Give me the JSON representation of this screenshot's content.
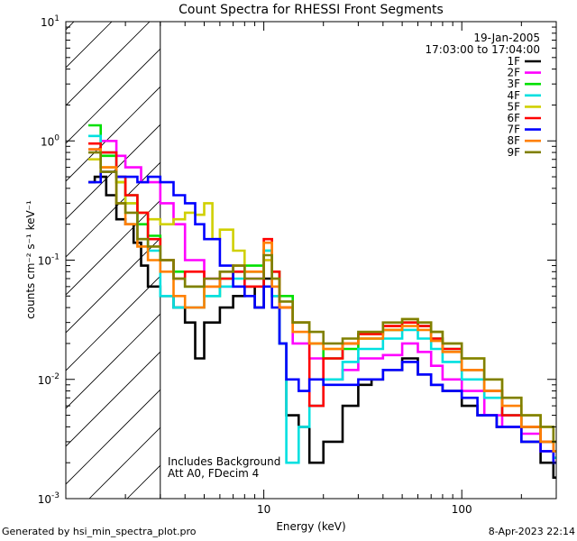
{
  "chart_data": {
    "type": "line",
    "title": "Count Spectra for RHESSI Front Segments",
    "xlabel": "Energy (keV)",
    "ylabel": "counts cm⁻² s⁻¹ keV⁻¹",
    "xscale": "log",
    "yscale": "log",
    "xlim": [
      1,
      300
    ],
    "ylim": [
      0.001,
      10
    ],
    "x_tick_labels": [
      "10",
      "100"
    ],
    "y_tick_labels": [
      {
        "base": "10",
        "exp": "1",
        "value": 10
      },
      {
        "base": "10",
        "exp": "0",
        "value": 1
      },
      {
        "base": "10",
        "exp": "-1",
        "value": 0.1
      },
      {
        "base": "10",
        "exp": "-2",
        "value": 0.01
      },
      {
        "base": "10",
        "exp": "-3",
        "value": 0.001
      }
    ],
    "date": "19-Jan-2005",
    "time_range": "17:03:00 to 17:04:00",
    "shaded_region": {
      "from": 1,
      "to": 3
    },
    "annotations": [
      "Includes Background",
      "Att A0, FDecim 4"
    ],
    "series": [
      {
        "name": "1F",
        "color": "#000000",
        "points": [
          [
            1.3,
            0.45
          ],
          [
            1.4,
            0.5
          ],
          [
            1.6,
            0.35
          ],
          [
            1.8,
            0.22
          ],
          [
            2,
            0.2
          ],
          [
            2.2,
            0.14
          ],
          [
            2.4,
            0.09
          ],
          [
            2.6,
            0.06
          ],
          [
            3,
            0.05
          ],
          [
            3.5,
            0.04
          ],
          [
            4,
            0.03
          ],
          [
            4.5,
            0.015
          ],
          [
            5,
            0.03
          ],
          [
            6,
            0.04
          ],
          [
            7,
            0.05
          ],
          [
            8,
            0.06
          ],
          [
            9,
            0.04
          ],
          [
            10,
            0.07
          ],
          [
            11,
            0.05
          ],
          [
            12,
            0.02
          ],
          [
            13,
            0.005
          ],
          [
            15,
            0.004
          ],
          [
            17,
            0.002
          ],
          [
            20,
            0.003
          ],
          [
            25,
            0.006
          ],
          [
            30,
            0.009
          ],
          [
            35,
            0.01
          ],
          [
            40,
            0.012
          ],
          [
            50,
            0.015
          ],
          [
            60,
            0.011
          ],
          [
            70,
            0.009
          ],
          [
            80,
            0.008
          ],
          [
            100,
            0.006
          ],
          [
            120,
            0.005
          ],
          [
            150,
            0.004
          ],
          [
            200,
            0.003
          ],
          [
            250,
            0.002
          ],
          [
            290,
            0.0015
          ]
        ]
      },
      {
        "name": "2F",
        "color": "#ff00ff",
        "points": [
          [
            1.3,
            0.85
          ],
          [
            1.5,
            1.0
          ],
          [
            1.8,
            0.75
          ],
          [
            2,
            0.6
          ],
          [
            2.4,
            0.45
          ],
          [
            3,
            0.3
          ],
          [
            3.5,
            0.2
          ],
          [
            4,
            0.1
          ],
          [
            5,
            0.07
          ],
          [
            6,
            0.06
          ],
          [
            7,
            0.06
          ],
          [
            8,
            0.07
          ],
          [
            10,
            0.1
          ],
          [
            11,
            0.06
          ],
          [
            12,
            0.04
          ],
          [
            14,
            0.02
          ],
          [
            17,
            0.015
          ],
          [
            20,
            0.01
          ],
          [
            25,
            0.012
          ],
          [
            30,
            0.015
          ],
          [
            40,
            0.016
          ],
          [
            50,
            0.02
          ],
          [
            60,
            0.017
          ],
          [
            70,
            0.013
          ],
          [
            80,
            0.01
          ],
          [
            100,
            0.008
          ],
          [
            130,
            0.005
          ],
          [
            160,
            0.004
          ],
          [
            200,
            0.0035
          ],
          [
            250,
            0.0025
          ],
          [
            290,
            0.002
          ]
        ]
      },
      {
        "name": "3F",
        "color": "#00e000",
        "points": [
          [
            1.3,
            1.35
          ],
          [
            1.5,
            0.75
          ],
          [
            1.8,
            0.45
          ],
          [
            2,
            0.35
          ],
          [
            2.3,
            0.2
          ],
          [
            2.6,
            0.16
          ],
          [
            3,
            0.1
          ],
          [
            3.5,
            0.08
          ],
          [
            4,
            0.06
          ],
          [
            5,
            0.05
          ],
          [
            6,
            0.07
          ],
          [
            7,
            0.08
          ],
          [
            8,
            0.09
          ],
          [
            10,
            0.12
          ],
          [
            11,
            0.08
          ],
          [
            12,
            0.05
          ],
          [
            14,
            0.03
          ],
          [
            17,
            0.02
          ],
          [
            20,
            0.015
          ],
          [
            25,
            0.018
          ],
          [
            30,
            0.022
          ],
          [
            40,
            0.026
          ],
          [
            50,
            0.03
          ],
          [
            60,
            0.028
          ],
          [
            70,
            0.022
          ],
          [
            80,
            0.018
          ],
          [
            100,
            0.012
          ],
          [
            130,
            0.008
          ],
          [
            160,
            0.005
          ],
          [
            200,
            0.004
          ],
          [
            250,
            0.003
          ],
          [
            290,
            0.0025
          ]
        ]
      },
      {
        "name": "4F",
        "color": "#00e0e0",
        "points": [
          [
            1.3,
            1.1
          ],
          [
            1.5,
            0.8
          ],
          [
            1.8,
            0.5
          ],
          [
            2,
            0.3
          ],
          [
            2.3,
            0.15
          ],
          [
            2.6,
            0.12
          ],
          [
            3,
            0.05
          ],
          [
            3.5,
            0.04
          ],
          [
            4,
            0.04
          ],
          [
            5,
            0.05
          ],
          [
            6,
            0.06
          ],
          [
            7,
            0.07
          ],
          [
            8,
            0.08
          ],
          [
            10,
            0.12
          ],
          [
            11,
            0.05
          ],
          [
            12,
            0.02
          ],
          [
            13,
            0.002
          ],
          [
            15,
            0.004
          ],
          [
            17,
            0.006
          ],
          [
            20,
            0.01
          ],
          [
            25,
            0.014
          ],
          [
            30,
            0.018
          ],
          [
            40,
            0.022
          ],
          [
            50,
            0.026
          ],
          [
            60,
            0.022
          ],
          [
            70,
            0.018
          ],
          [
            80,
            0.014
          ],
          [
            100,
            0.01
          ],
          [
            130,
            0.007
          ],
          [
            160,
            0.005
          ],
          [
            200,
            0.004
          ],
          [
            250,
            0.003
          ],
          [
            290,
            0.0022
          ]
        ]
      },
      {
        "name": "5F",
        "color": "#d0d000",
        "points": [
          [
            1.3,
            0.7
          ],
          [
            1.5,
            0.6
          ],
          [
            1.8,
            0.45
          ],
          [
            2,
            0.3
          ],
          [
            2.3,
            0.25
          ],
          [
            2.6,
            0.22
          ],
          [
            3,
            0.2
          ],
          [
            3.5,
            0.22
          ],
          [
            4,
            0.25
          ],
          [
            4.5,
            0.24
          ],
          [
            5,
            0.3
          ],
          [
            5.5,
            0.15
          ],
          [
            6,
            0.18
          ],
          [
            7,
            0.12
          ],
          [
            8,
            0.08
          ],
          [
            10,
            0.1
          ],
          [
            11,
            0.07
          ],
          [
            12,
            0.04
          ],
          [
            14,
            0.03
          ],
          [
            17,
            0.02
          ],
          [
            20,
            0.018
          ],
          [
            25,
            0.02
          ],
          [
            30,
            0.024
          ],
          [
            40,
            0.028
          ],
          [
            50,
            0.032
          ],
          [
            60,
            0.03
          ],
          [
            70,
            0.025
          ],
          [
            80,
            0.02
          ],
          [
            100,
            0.015
          ],
          [
            130,
            0.01
          ],
          [
            160,
            0.007
          ],
          [
            200,
            0.005
          ],
          [
            250,
            0.004
          ],
          [
            290,
            0.003
          ]
        ]
      },
      {
        "name": "6F",
        "color": "#ff0000",
        "points": [
          [
            1.3,
            0.95
          ],
          [
            1.5,
            0.8
          ],
          [
            1.8,
            0.5
          ],
          [
            2,
            0.35
          ],
          [
            2.3,
            0.25
          ],
          [
            2.6,
            0.15
          ],
          [
            3,
            0.1
          ],
          [
            3.5,
            0.07
          ],
          [
            4,
            0.08
          ],
          [
            5,
            0.06
          ],
          [
            6,
            0.07
          ],
          [
            7,
            0.08
          ],
          [
            8,
            0.06
          ],
          [
            10,
            0.15
          ],
          [
            11,
            0.08
          ],
          [
            12,
            0.04
          ],
          [
            14,
            0.03
          ],
          [
            17,
            0.006
          ],
          [
            20,
            0.015
          ],
          [
            25,
            0.02
          ],
          [
            30,
            0.024
          ],
          [
            40,
            0.028
          ],
          [
            50,
            0.03
          ],
          [
            60,
            0.028
          ],
          [
            70,
            0.022
          ],
          [
            80,
            0.018
          ],
          [
            100,
            0.012
          ],
          [
            130,
            0.008
          ],
          [
            160,
            0.005
          ],
          [
            200,
            0.004
          ],
          [
            250,
            0.003
          ],
          [
            290,
            0.002
          ]
        ]
      },
      {
        "name": "7F",
        "color": "#0000ff",
        "points": [
          [
            1.3,
            0.45
          ],
          [
            1.5,
            0.55
          ],
          [
            1.8,
            0.5
          ],
          [
            2,
            0.5
          ],
          [
            2.3,
            0.45
          ],
          [
            2.6,
            0.5
          ],
          [
            3,
            0.45
          ],
          [
            3.5,
            0.35
          ],
          [
            4,
            0.3
          ],
          [
            4.5,
            0.2
          ],
          [
            5,
            0.15
          ],
          [
            6,
            0.09
          ],
          [
            7,
            0.06
          ],
          [
            8,
            0.05
          ],
          [
            9,
            0.04
          ],
          [
            10,
            0.06
          ],
          [
            11,
            0.04
          ],
          [
            12,
            0.02
          ],
          [
            13,
            0.01
          ],
          [
            15,
            0.008
          ],
          [
            17,
            0.01
          ],
          [
            20,
            0.009
          ],
          [
            25,
            0.009
          ],
          [
            30,
            0.01
          ],
          [
            40,
            0.012
          ],
          [
            50,
            0.014
          ],
          [
            60,
            0.011
          ],
          [
            70,
            0.009
          ],
          [
            80,
            0.008
          ],
          [
            100,
            0.007
          ],
          [
            120,
            0.005
          ],
          [
            150,
            0.004
          ],
          [
            200,
            0.003
          ],
          [
            250,
            0.0025
          ],
          [
            290,
            0.002
          ]
        ]
      },
      {
        "name": "8F",
        "color": "#ff8000",
        "points": [
          [
            1.3,
            0.85
          ],
          [
            1.5,
            0.6
          ],
          [
            1.8,
            0.3
          ],
          [
            2,
            0.2
          ],
          [
            2.3,
            0.13
          ],
          [
            2.6,
            0.1
          ],
          [
            3,
            0.08
          ],
          [
            3.5,
            0.05
          ],
          [
            4,
            0.04
          ],
          [
            5,
            0.06
          ],
          [
            6,
            0.08
          ],
          [
            7,
            0.09
          ],
          [
            8,
            0.08
          ],
          [
            10,
            0.14
          ],
          [
            11,
            0.06
          ],
          [
            12,
            0.04
          ],
          [
            14,
            0.025
          ],
          [
            17,
            0.02
          ],
          [
            20,
            0.018
          ],
          [
            25,
            0.02
          ],
          [
            30,
            0.022
          ],
          [
            40,
            0.026
          ],
          [
            50,
            0.028
          ],
          [
            60,
            0.026
          ],
          [
            70,
            0.021
          ],
          [
            80,
            0.017
          ],
          [
            100,
            0.012
          ],
          [
            130,
            0.008
          ],
          [
            160,
            0.006
          ],
          [
            200,
            0.004
          ],
          [
            250,
            0.003
          ],
          [
            290,
            0.0025
          ]
        ]
      },
      {
        "name": "9F",
        "color": "#808000",
        "points": [
          [
            1.3,
            0.8
          ],
          [
            1.5,
            0.55
          ],
          [
            1.8,
            0.3
          ],
          [
            2,
            0.25
          ],
          [
            2.3,
            0.15
          ],
          [
            2.6,
            0.13
          ],
          [
            3,
            0.1
          ],
          [
            3.5,
            0.07
          ],
          [
            4,
            0.06
          ],
          [
            5,
            0.07
          ],
          [
            6,
            0.08
          ],
          [
            7,
            0.09
          ],
          [
            8,
            0.07
          ],
          [
            10,
            0.11
          ],
          [
            11,
            0.07
          ],
          [
            12,
            0.045
          ],
          [
            14,
            0.03
          ],
          [
            17,
            0.025
          ],
          [
            20,
            0.02
          ],
          [
            25,
            0.022
          ],
          [
            30,
            0.025
          ],
          [
            40,
            0.03
          ],
          [
            50,
            0.032
          ],
          [
            60,
            0.03
          ],
          [
            70,
            0.025
          ],
          [
            80,
            0.02
          ],
          [
            100,
            0.015
          ],
          [
            130,
            0.01
          ],
          [
            160,
            0.007
          ],
          [
            200,
            0.005
          ],
          [
            250,
            0.004
          ],
          [
            290,
            0.003
          ]
        ]
      }
    ]
  },
  "footer": {
    "left": "Generated by hsi_min_spectra_plot.pro",
    "right": "8-Apr-2023 22:14"
  }
}
